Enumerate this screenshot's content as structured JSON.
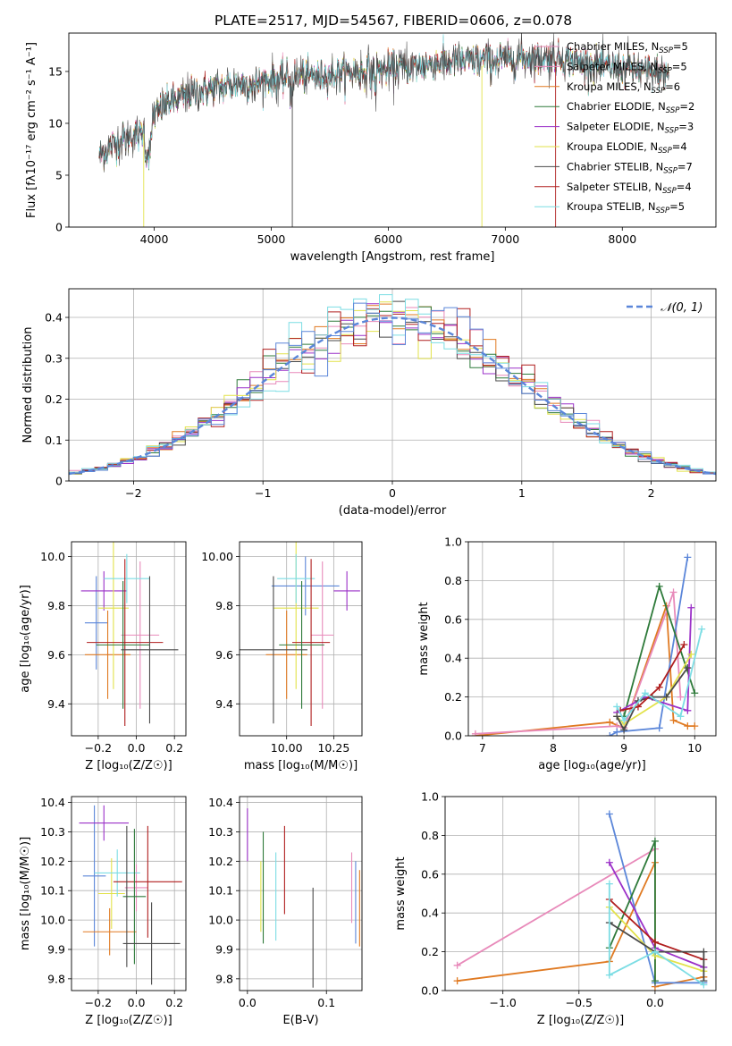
{
  "figure": {
    "title": "PLATE=2517, MJD=54567, FIBERID=0606, z=0.078"
  },
  "colors": {
    "chabrier_miles": "#e88aba",
    "salpeter_miles": "#e88aba",
    "kroupa_miles": "#e07a22",
    "chabrier_elodie": "#2e7a3a",
    "salpeter_elodie": "#9b30c8",
    "kroupa_elodie": "#e2e24a",
    "chabrier_stelib": "#4a4a4a",
    "salpeter_stelib": "#b01e1e",
    "kroupa_stelib": "#7cdde4",
    "mixed_blue": "#5b86d9"
  },
  "chart_data": [
    {
      "id": "spectrum",
      "type": "line",
      "xlabel": "wavelength [Angstrom, rest frame]",
      "ylabel": "Flux [fλ10⁻¹⁷ erg cm⁻² s⁻¹ A⁻¹]",
      "xlim": [
        3270,
        8800
      ],
      "ylim": [
        0,
        18.7
      ],
      "xticks": [
        4000,
        5000,
        6000,
        7000,
        8000
      ],
      "yticks": [
        0,
        5,
        10,
        15
      ],
      "grid": false,
      "legend_position": "right",
      "continuum_x": [
        3550,
        3650,
        3750,
        3850,
        3950,
        4000,
        4100,
        4300,
        4500,
        4800,
        5200,
        5600,
        6000,
        6500,
        7000,
        7400,
        7800,
        8200,
        8400
      ],
      "continuum_y": [
        7.0,
        8.0,
        8.5,
        8.9,
        9.4,
        10.8,
        11.9,
        12.8,
        13.4,
        13.9,
        14.5,
        14.8,
        15.2,
        15.9,
        16.2,
        16.3,
        15.6,
        15.0,
        14.7
      ],
      "legend": [
        {
          "label": "Chabrier MILES, N_SSP=5",
          "nssp": 5,
          "color": "#e88aba"
        },
        {
          "label": "Salpeter MILES, N_SSP=5",
          "nssp": 5,
          "color": "#e88aba"
        },
        {
          "label": "Kroupa MILES, N_SSP=6",
          "nssp": 6,
          "color": "#e07a22"
        },
        {
          "label": "Chabrier ELODIE, N_SSP=2",
          "nssp": 2,
          "color": "#2e7a3a"
        },
        {
          "label": "Salpeter ELODIE, N_SSP=3",
          "nssp": 3,
          "color": "#9b30c8"
        },
        {
          "label": "Kroupa ELODIE, N_SSP=4",
          "nssp": 4,
          "color": "#e2e24a"
        },
        {
          "label": "Chabrier STELIB, N_SSP=7",
          "nssp": 7,
          "color": "#4a4a4a"
        },
        {
          "label": "Salpeter STELIB, N_SSP=4",
          "nssp": 4,
          "color": "#b01e1e"
        },
        {
          "label": "Kroupa STELIB, N_SSP=5",
          "nssp": 5,
          "color": "#7cdde4"
        }
      ]
    },
    {
      "id": "residuals",
      "type": "line",
      "xlabel": "(data-model)/error",
      "ylabel": "Normed distribution",
      "xlim": [
        -2.5,
        2.5
      ],
      "ylim": [
        0,
        0.47
      ],
      "xticks": [
        -2,
        -1,
        0,
        1,
        2
      ],
      "yticks": [
        0.0,
        0.1,
        0.2,
        0.3,
        0.4
      ],
      "grid": true,
      "legend": "𝒩(0, 1)",
      "legend_position": "top-right",
      "bin_width": 0.1,
      "bin_start": -2.5,
      "hist_colors": [
        "#e88aba",
        "#e07a22",
        "#2e7a3a",
        "#9b30c8",
        "#e2e24a",
        "#4a4a4a",
        "#b01e1e",
        "#7cdde4",
        "#5b86d9"
      ]
    },
    {
      "id": "age_vs_Z",
      "type": "scatter",
      "xlabel": "Z [log₁₀(Z/Z☉)]",
      "ylabel": "age  [log₁₀(age/yr)]",
      "xlim": [
        -0.34,
        0.26
      ],
      "ylim": [
        9.27,
        10.06
      ],
      "xticks": [
        -0.2,
        0.0,
        0.2
      ],
      "yticks": [
        9.4,
        9.6,
        9.8,
        10.0
      ],
      "grid": true,
      "points": [
        {
          "color": "#5b86d9",
          "x": -0.21,
          "xerr": 0.06,
          "y": 9.73,
          "yerr": 0.19
        },
        {
          "color": "#9b30c8",
          "x": -0.17,
          "xerr": 0.12,
          "y": 9.86,
          "yerr": 0.08
        },
        {
          "color": "#e88aba",
          "x": 0.02,
          "xerr": 0.1,
          "y": 9.68,
          "yerr": 0.3
        },
        {
          "color": "#e07a22",
          "x": -0.15,
          "xerr": 0.12,
          "y": 9.6,
          "yerr": 0.18
        },
        {
          "color": "#e2e24a",
          "x": -0.12,
          "xerr": 0.08,
          "y": 9.79,
          "yerr": 0.33
        },
        {
          "color": "#7cdde4",
          "x": -0.05,
          "xerr": 0.12,
          "y": 9.91,
          "yerr": 0.1
        },
        {
          "color": "#b01e1e",
          "x": -0.06,
          "xerr": 0.2,
          "y": 9.65,
          "yerr": 0.34
        },
        {
          "color": "#2e7a3a",
          "x": -0.07,
          "xerr": 0.14,
          "y": 9.64,
          "yerr": 0.26
        },
        {
          "color": "#4a4a4a",
          "x": 0.07,
          "xerr": 0.15,
          "y": 9.62,
          "yerr": 0.3
        }
      ]
    },
    {
      "id": "age_vs_mass",
      "type": "scatter",
      "xlabel": "mass [log₁₀(M/M☉)]",
      "ylabel": "",
      "xlim": [
        9.75,
        10.4
      ],
      "ylim": [
        9.27,
        10.06
      ],
      "xticks": [
        10.0,
        10.25
      ],
      "yticks": [
        9.4,
        9.6,
        9.8,
        10.0
      ],
      "grid": true,
      "points": [
        {
          "color": "#5b86d9",
          "x": 10.1,
          "xerr": 0.18,
          "y": 9.88,
          "yerr": 0.12
        },
        {
          "color": "#9b30c8",
          "x": 10.32,
          "xerr": 0.07,
          "y": 9.86,
          "yerr": 0.08
        },
        {
          "color": "#e88aba",
          "x": 10.19,
          "xerr": 0.06,
          "y": 9.68,
          "yerr": 0.3
        },
        {
          "color": "#e07a22",
          "x": 10.0,
          "xerr": 0.11,
          "y": 9.6,
          "yerr": 0.18
        },
        {
          "color": "#e2e24a",
          "x": 10.05,
          "xerr": 0.12,
          "y": 9.79,
          "yerr": 0.33
        },
        {
          "color": "#7cdde4",
          "x": 10.05,
          "xerr": 0.1,
          "y": 9.91,
          "yerr": 0.1
        },
        {
          "color": "#b01e1e",
          "x": 10.13,
          "xerr": 0.1,
          "y": 9.65,
          "yerr": 0.34
        },
        {
          "color": "#2e7a3a",
          "x": 10.08,
          "xerr": 0.12,
          "y": 9.64,
          "yerr": 0.26
        },
        {
          "color": "#4a4a4a",
          "x": 9.93,
          "xerr": 0.18,
          "y": 9.62,
          "yerr": 0.3
        }
      ]
    },
    {
      "id": "weight_vs_age",
      "type": "line",
      "xlabel": "age  [log₁₀(age/yr)]",
      "ylabel": "mass weight",
      "xlim": [
        6.8,
        10.3
      ],
      "ylim": [
        0.0,
        1.0
      ],
      "xticks": [
        7,
        8,
        9,
        10
      ],
      "yticks": [
        0.0,
        0.2,
        0.4,
        0.6,
        0.8,
        1.0
      ],
      "grid": true,
      "series": [
        {
          "color": "#e07a22",
          "x": [
            6.9,
            8.8,
            9.0,
            9.6,
            9.7,
            9.9,
            10.0
          ],
          "y": [
            0.0,
            0.07,
            0.04,
            0.67,
            0.08,
            0.05,
            0.05
          ]
        },
        {
          "color": "#e88aba",
          "x": [
            6.9,
            8.9,
            9.0,
            9.7,
            9.8
          ],
          "y": [
            0.01,
            0.05,
            0.04,
            0.74,
            0.2
          ]
        },
        {
          "color": "#5b86d9",
          "x": [
            8.8,
            8.9,
            9.5,
            9.9
          ],
          "y": [
            0.0,
            0.02,
            0.04,
            0.92
          ]
        },
        {
          "color": "#2e7a3a",
          "x": [
            9.0,
            9.5,
            10.0
          ],
          "y": [
            0.1,
            0.77,
            0.22
          ]
        },
        {
          "color": "#9b30c8",
          "x": [
            8.9,
            9.3,
            9.9,
            9.95
          ],
          "y": [
            0.12,
            0.2,
            0.13,
            0.66
          ]
        },
        {
          "color": "#e2e24a",
          "x": [
            8.9,
            9.0,
            9.6,
            9.95
          ],
          "y": [
            0.1,
            0.06,
            0.2,
            0.42
          ]
        },
        {
          "color": "#4a4a4a",
          "x": [
            8.9,
            9.0,
            9.2,
            9.4,
            9.6,
            9.9
          ],
          "y": [
            0.1,
            0.03,
            0.18,
            0.2,
            0.2,
            0.35
          ]
        },
        {
          "color": "#b01e1e",
          "x": [
            8.95,
            9.2,
            9.5,
            9.85
          ],
          "y": [
            0.13,
            0.15,
            0.25,
            0.47
          ]
        },
        {
          "color": "#7cdde4",
          "x": [
            8.9,
            9.0,
            9.3,
            9.8,
            10.1
          ],
          "y": [
            0.15,
            0.08,
            0.22,
            0.1,
            0.55
          ]
        }
      ]
    },
    {
      "id": "mass_vs_Z",
      "type": "scatter",
      "xlabel": "Z [log₁₀(Z/Z☉)]",
      "ylabel": "mass [log₁₀(M/M☉)]",
      "xlim": [
        -0.34,
        0.26
      ],
      "ylim": [
        9.76,
        10.42
      ],
      "xticks": [
        -0.2,
        0.0,
        0.2
      ],
      "yticks": [
        9.8,
        9.9,
        10.0,
        10.1,
        10.2,
        10.3,
        10.4
      ],
      "grid": true,
      "points": [
        {
          "color": "#5b86d9",
          "x": -0.22,
          "xerr": 0.06,
          "y": 10.15,
          "yerr": 0.24
        },
        {
          "color": "#9b30c8",
          "x": -0.17,
          "xerr": 0.13,
          "y": 10.33,
          "yerr": 0.06
        },
        {
          "color": "#e88aba",
          "x": 0.0,
          "xerr": 0.06,
          "y": 10.11,
          "yerr": 0.08
        },
        {
          "color": "#e07a22",
          "x": -0.14,
          "xerr": 0.14,
          "y": 9.96,
          "yerr": 0.08
        },
        {
          "color": "#e2e24a",
          "x": -0.13,
          "xerr": 0.07,
          "y": 10.09,
          "yerr": 0.12
        },
        {
          "color": "#7cdde4",
          "x": -0.1,
          "xerr": 0.12,
          "y": 10.16,
          "yerr": 0.08
        },
        {
          "color": "#b01e1e",
          "x": 0.06,
          "xerr": 0.18,
          "y": 10.13,
          "yerr": 0.19
        },
        {
          "color": "#2e7a3a",
          "x": -0.01,
          "xerr": 0.06,
          "y": 10.08,
          "yerr": 0.23
        },
        {
          "color": "#4a4a4a",
          "x": -0.05,
          "xerr": 0.0,
          "y": 10.08,
          "yerr": 0.24
        },
        {
          "color": "#4a4a4a",
          "x": 0.08,
          "xerr": 0.15,
          "y": 9.92,
          "yerr": 0.14
        },
        {
          "color": "#5b86d9",
          "x": -0.06,
          "xerr": 0.0,
          "y": 10.14,
          "yerr": 0.0
        }
      ]
    },
    {
      "id": "mass_vs_ebv",
      "type": "scatter",
      "xlabel": "E(B-V)",
      "ylabel": "",
      "xlim": [
        -0.01,
        0.145
      ],
      "ylim": [
        9.76,
        10.42
      ],
      "xticks": [
        0.0,
        0.1
      ],
      "yticks": [
        9.8,
        9.9,
        10.0,
        10.1,
        10.2,
        10.3,
        10.4
      ],
      "grid": true,
      "points": [
        {
          "color": "#9b30c8",
          "x": 0.0,
          "y": 10.29,
          "yerr": 0.09
        },
        {
          "color": "#e2e24a",
          "x": 0.017,
          "y": 10.08,
          "yerr": 0.12
        },
        {
          "color": "#2e7a3a",
          "x": 0.02,
          "y": 10.11,
          "yerr": 0.19
        },
        {
          "color": "#7cdde4",
          "x": 0.036,
          "y": 10.08,
          "yerr": 0.15
        },
        {
          "color": "#b01e1e",
          "x": 0.047,
          "y": 10.17,
          "yerr": 0.15
        },
        {
          "color": "#4a4a4a",
          "x": 0.083,
          "y": 9.94,
          "yerr": 0.17
        },
        {
          "color": "#e88aba",
          "x": 0.132,
          "y": 10.11,
          "yerr": 0.12
        },
        {
          "color": "#5b86d9",
          "x": 0.137,
          "y": 10.06,
          "yerr": 0.14
        },
        {
          "color": "#e07a22",
          "x": 0.142,
          "y": 10.04,
          "yerr": 0.13
        }
      ]
    },
    {
      "id": "weight_vs_Z",
      "type": "line",
      "xlabel": "Z [log₁₀(Z/Z☉)]",
      "ylabel": "mass weight",
      "xlim": [
        -1.38,
        0.4
      ],
      "ylim": [
        0.0,
        1.0
      ],
      "xticks": [
        -1.0,
        -0.5,
        0.0
      ],
      "yticks": [
        0.0,
        0.2,
        0.4,
        0.6,
        0.8,
        1.0
      ],
      "grid": true,
      "series": [
        {
          "color": "#e88aba",
          "x": [
            -1.3,
            0.0
          ],
          "y": [
            0.13,
            0.73
          ]
        },
        {
          "color": "#e07a22",
          "x": [
            -1.3,
            -0.3,
            0.0,
            0.0,
            0.32
          ],
          "y": [
            0.05,
            0.15,
            0.66,
            0.02,
            0.07
          ]
        },
        {
          "color": "#5b86d9",
          "x": [
            -0.3,
            0.0,
            0.32
          ],
          "y": [
            0.91,
            0.04,
            0.04
          ]
        },
        {
          "color": "#9b30c8",
          "x": [
            -0.3,
            0.0,
            0.32
          ],
          "y": [
            0.66,
            0.22,
            0.12
          ]
        },
        {
          "color": "#2e7a3a",
          "x": [
            -0.3,
            0.0,
            0.0
          ],
          "y": [
            0.22,
            0.77,
            0.05
          ]
        },
        {
          "color": "#e2e24a",
          "x": [
            -0.3,
            0.0,
            0.32
          ],
          "y": [
            0.43,
            0.18,
            0.1
          ]
        },
        {
          "color": "#b01e1e",
          "x": [
            -0.3,
            0.0,
            0.32
          ],
          "y": [
            0.47,
            0.25,
            0.16
          ]
        },
        {
          "color": "#4a4a4a",
          "x": [
            -0.3,
            0.0,
            0.32,
            0.32
          ],
          "y": [
            0.35,
            0.2,
            0.2,
            0.05
          ]
        },
        {
          "color": "#7cdde4",
          "x": [
            -0.3,
            -0.3,
            0.0,
            0.32
          ],
          "y": [
            0.55,
            0.08,
            0.2,
            0.03
          ]
        }
      ]
    }
  ]
}
